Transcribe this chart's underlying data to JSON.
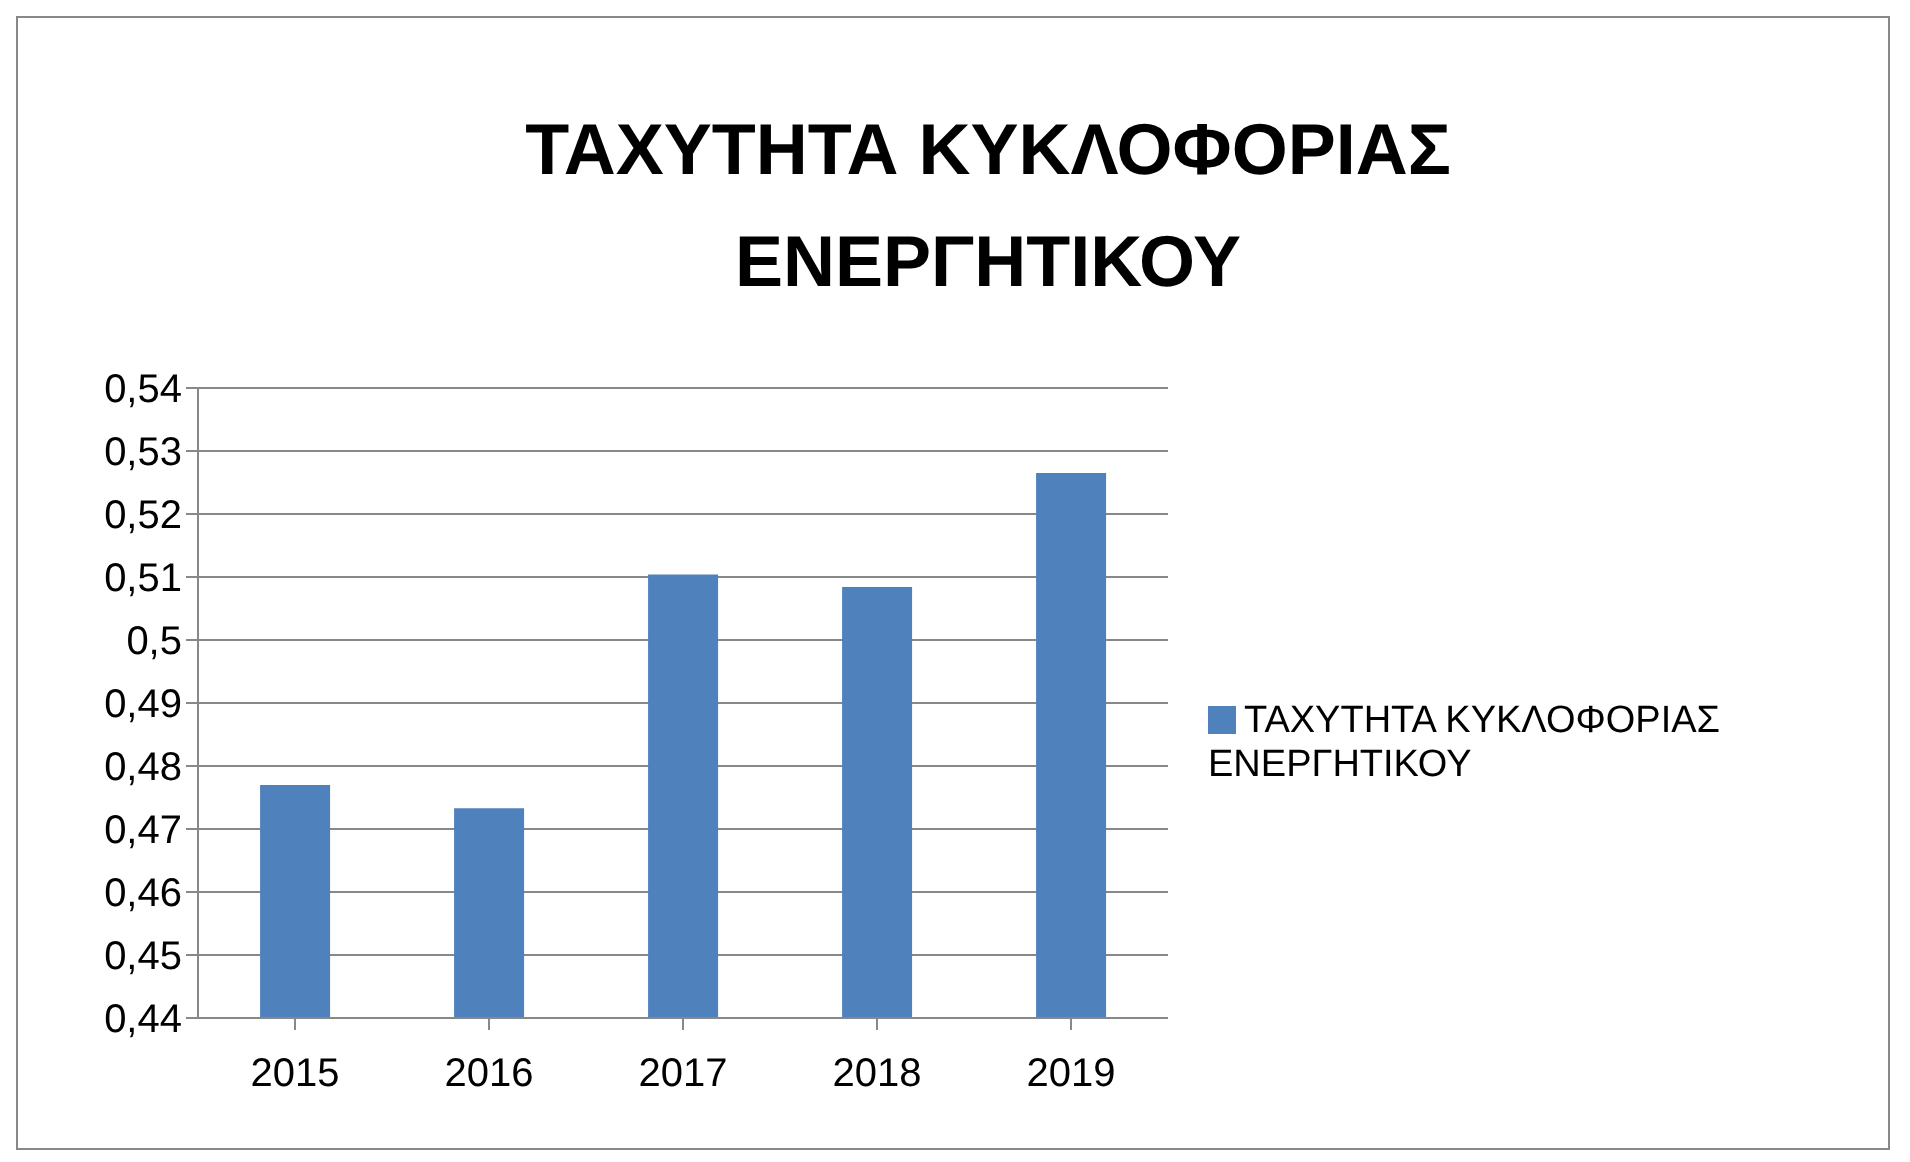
{
  "chart_data": {
    "type": "bar",
    "title": "ΤΑΧΥΤΗΤΑ ΚΥΚΛΟΦΟΡΙΑΣ ΕΝΕΡΓΗΤΙΚΟΥ",
    "categories": [
      "2015",
      "2016",
      "2017",
      "2018",
      "2019"
    ],
    "series": [
      {
        "name": "ΤΑΧΥΤΗΤΑ ΚΥΚΛΟΦΟΡΙΑΣ ΕΝΕΡΓΗΤΙΚΟΥ",
        "color": "#4f81bd",
        "values": [
          0.477,
          0.4733,
          0.5104,
          0.5084,
          0.5265
        ]
      }
    ],
    "ylim": [
      0.44,
      0.54
    ],
    "yticks": [
      {
        "value": 0.44,
        "label": "0,44"
      },
      {
        "value": 0.45,
        "label": "0,45"
      },
      {
        "value": 0.46,
        "label": "0,46"
      },
      {
        "value": 0.47,
        "label": "0,47"
      },
      {
        "value": 0.48,
        "label": "0,48"
      },
      {
        "value": 0.49,
        "label": "0,49"
      },
      {
        "value": 0.5,
        "label": "0,5"
      },
      {
        "value": 0.51,
        "label": "0,51"
      },
      {
        "value": 0.52,
        "label": "0,52"
      },
      {
        "value": 0.53,
        "label": "0,53"
      },
      {
        "value": 0.54,
        "label": "0,54"
      }
    ],
    "grid": "y",
    "legend": "right"
  }
}
